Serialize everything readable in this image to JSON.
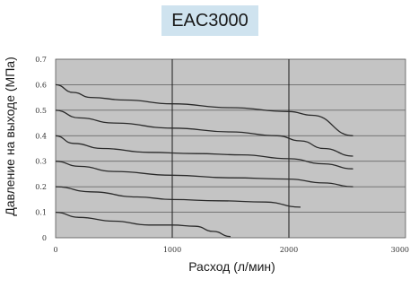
{
  "chart_data": {
    "type": "line",
    "title": "EAC3000",
    "xlabel": "Расход (л/мин)",
    "ylabel": "Давление на выходе (МПа)",
    "xlim": [
      0,
      3000
    ],
    "ylim": [
      0,
      0.7
    ],
    "xticks": [
      "0",
      "1000",
      "2000",
      "3000"
    ],
    "yticks": [
      "0",
      "0.1",
      "0.2",
      "0.3",
      "0.4",
      "0.5",
      "0.6",
      "0.7"
    ],
    "grid": true,
    "plot_background": "#c4c4c4",
    "line_color": "#2a2a2a",
    "series": [
      {
        "x": [
          0,
          150,
          300,
          600,
          1000,
          1500,
          2000,
          2200,
          2550
        ],
        "y": [
          0.6,
          0.57,
          0.55,
          0.54,
          0.525,
          0.51,
          0.495,
          0.48,
          0.4
        ]
      },
      {
        "x": [
          0,
          200,
          500,
          1000,
          1500,
          1900,
          2100,
          2300,
          2550
        ],
        "y": [
          0.5,
          0.47,
          0.45,
          0.43,
          0.415,
          0.4,
          0.38,
          0.35,
          0.32
        ]
      },
      {
        "x": [
          0,
          150,
          400,
          800,
          1200,
          1600,
          2000,
          2300,
          2550
        ],
        "y": [
          0.4,
          0.37,
          0.35,
          0.335,
          0.33,
          0.325,
          0.31,
          0.29,
          0.27
        ]
      },
      {
        "x": [
          0,
          200,
          500,
          1000,
          1500,
          2000,
          2300,
          2550
        ],
        "y": [
          0.3,
          0.28,
          0.26,
          0.245,
          0.235,
          0.23,
          0.215,
          0.2
        ]
      },
      {
        "x": [
          0,
          300,
          700,
          1000,
          1400,
          1800,
          2100
        ],
        "y": [
          0.2,
          0.18,
          0.16,
          0.15,
          0.145,
          0.14,
          0.12
        ]
      },
      {
        "x": [
          0,
          200,
          500,
          800,
          1000,
          1200,
          1350,
          1500
        ],
        "y": [
          0.1,
          0.08,
          0.065,
          0.05,
          0.05,
          0.045,
          0.025,
          0.005
        ]
      }
    ]
  }
}
